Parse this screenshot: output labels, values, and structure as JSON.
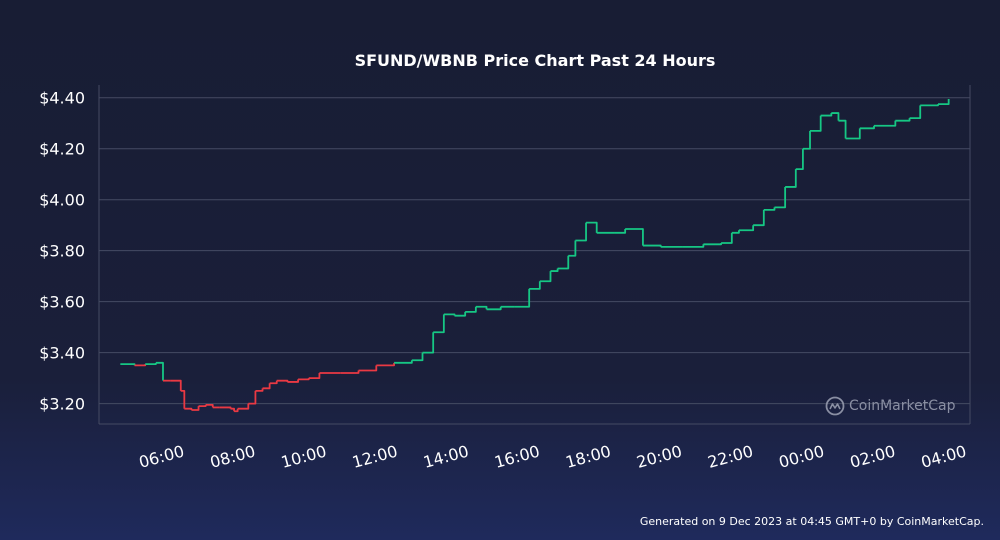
{
  "colors": {
    "background": "#181d34",
    "grid": "#454b63",
    "up": "#16c784",
    "down": "#ea3943",
    "text": "#ffffff",
    "watermark": "#8a8fa3"
  },
  "footer": "Generated on 9 Dec 2023 at 04:45 GMT+0 by CoinMarketCap.",
  "watermark": {
    "text": "CoinMarketCap",
    "icon": "coinmarketcap-logo-icon"
  },
  "chart_data": {
    "type": "line",
    "title": "SFUND/WBNB Price Chart Past 24 Hours",
    "xlabel": "",
    "ylabel": "",
    "y_tick_values": [
      3.2,
      3.4,
      3.6,
      3.8,
      4.0,
      4.2,
      4.4
    ],
    "y_tick_labels": [
      "$3.20",
      "$3.40",
      "$3.60",
      "$3.80",
      "$4.00",
      "$4.20",
      "$4.40"
    ],
    "x_tick_values": [
      6,
      8,
      10,
      12,
      14,
      16,
      18,
      20,
      22,
      24,
      26,
      28
    ],
    "x_tick_labels": [
      "06:00",
      "08:00",
      "10:00",
      "12:00",
      "14:00",
      "16:00",
      "18:00",
      "20:00",
      "22:00",
      "00:00",
      "02:00",
      "04:00"
    ],
    "xlim": [
      4.2,
      28.7
    ],
    "ylim": [
      3.12,
      4.45
    ],
    "grid": true,
    "legend": "none",
    "color_rule": "line is red below the opening price and green above it",
    "series": [
      {
        "x": [
          4.8,
          5.2,
          5.5,
          5.8,
          6.0,
          6.2,
          6.5,
          6.6,
          6.8,
          7.0,
          7.2,
          7.4,
          7.6,
          7.9,
          8.0,
          8.1,
          8.4,
          8.6,
          8.8,
          9.0,
          9.2,
          9.5,
          9.8,
          10.1,
          10.4,
          11.0,
          11.5,
          12.0,
          12.5,
          13.0,
          13.3,
          13.6,
          13.9,
          14.2,
          14.5,
          14.8,
          15.1,
          15.5,
          15.9,
          16.3,
          16.6,
          16.9,
          17.1,
          17.4,
          17.6,
          17.9,
          18.2,
          18.7,
          19.0,
          19.5,
          20.0,
          20.6,
          21.2,
          21.7,
          22.0,
          22.2,
          22.6,
          22.9,
          23.2,
          23.5,
          23.8,
          24.0,
          24.2,
          24.5,
          24.8,
          25.0,
          25.2,
          25.6,
          26.0,
          26.6,
          27.0,
          27.3,
          27.8,
          28.1
        ],
        "values": [
          3.355,
          3.35,
          3.355,
          3.36,
          3.29,
          3.29,
          3.25,
          3.18,
          3.175,
          3.19,
          3.195,
          3.185,
          3.185,
          3.18,
          3.17,
          3.18,
          3.2,
          3.25,
          3.26,
          3.28,
          3.29,
          3.285,
          3.295,
          3.3,
          3.32,
          3.32,
          3.33,
          3.35,
          3.36,
          3.37,
          3.4,
          3.48,
          3.55,
          3.545,
          3.56,
          3.58,
          3.57,
          3.58,
          3.58,
          3.65,
          3.68,
          3.72,
          3.73,
          3.78,
          3.84,
          3.91,
          3.87,
          3.87,
          3.885,
          3.82,
          3.815,
          3.815,
          3.825,
          3.83,
          3.87,
          3.88,
          3.9,
          3.96,
          3.97,
          4.05,
          4.12,
          4.2,
          4.27,
          4.33,
          4.34,
          4.31,
          4.24,
          4.28,
          4.29,
          4.31,
          4.32,
          4.37,
          4.375,
          4.395
        ]
      }
    ]
  }
}
